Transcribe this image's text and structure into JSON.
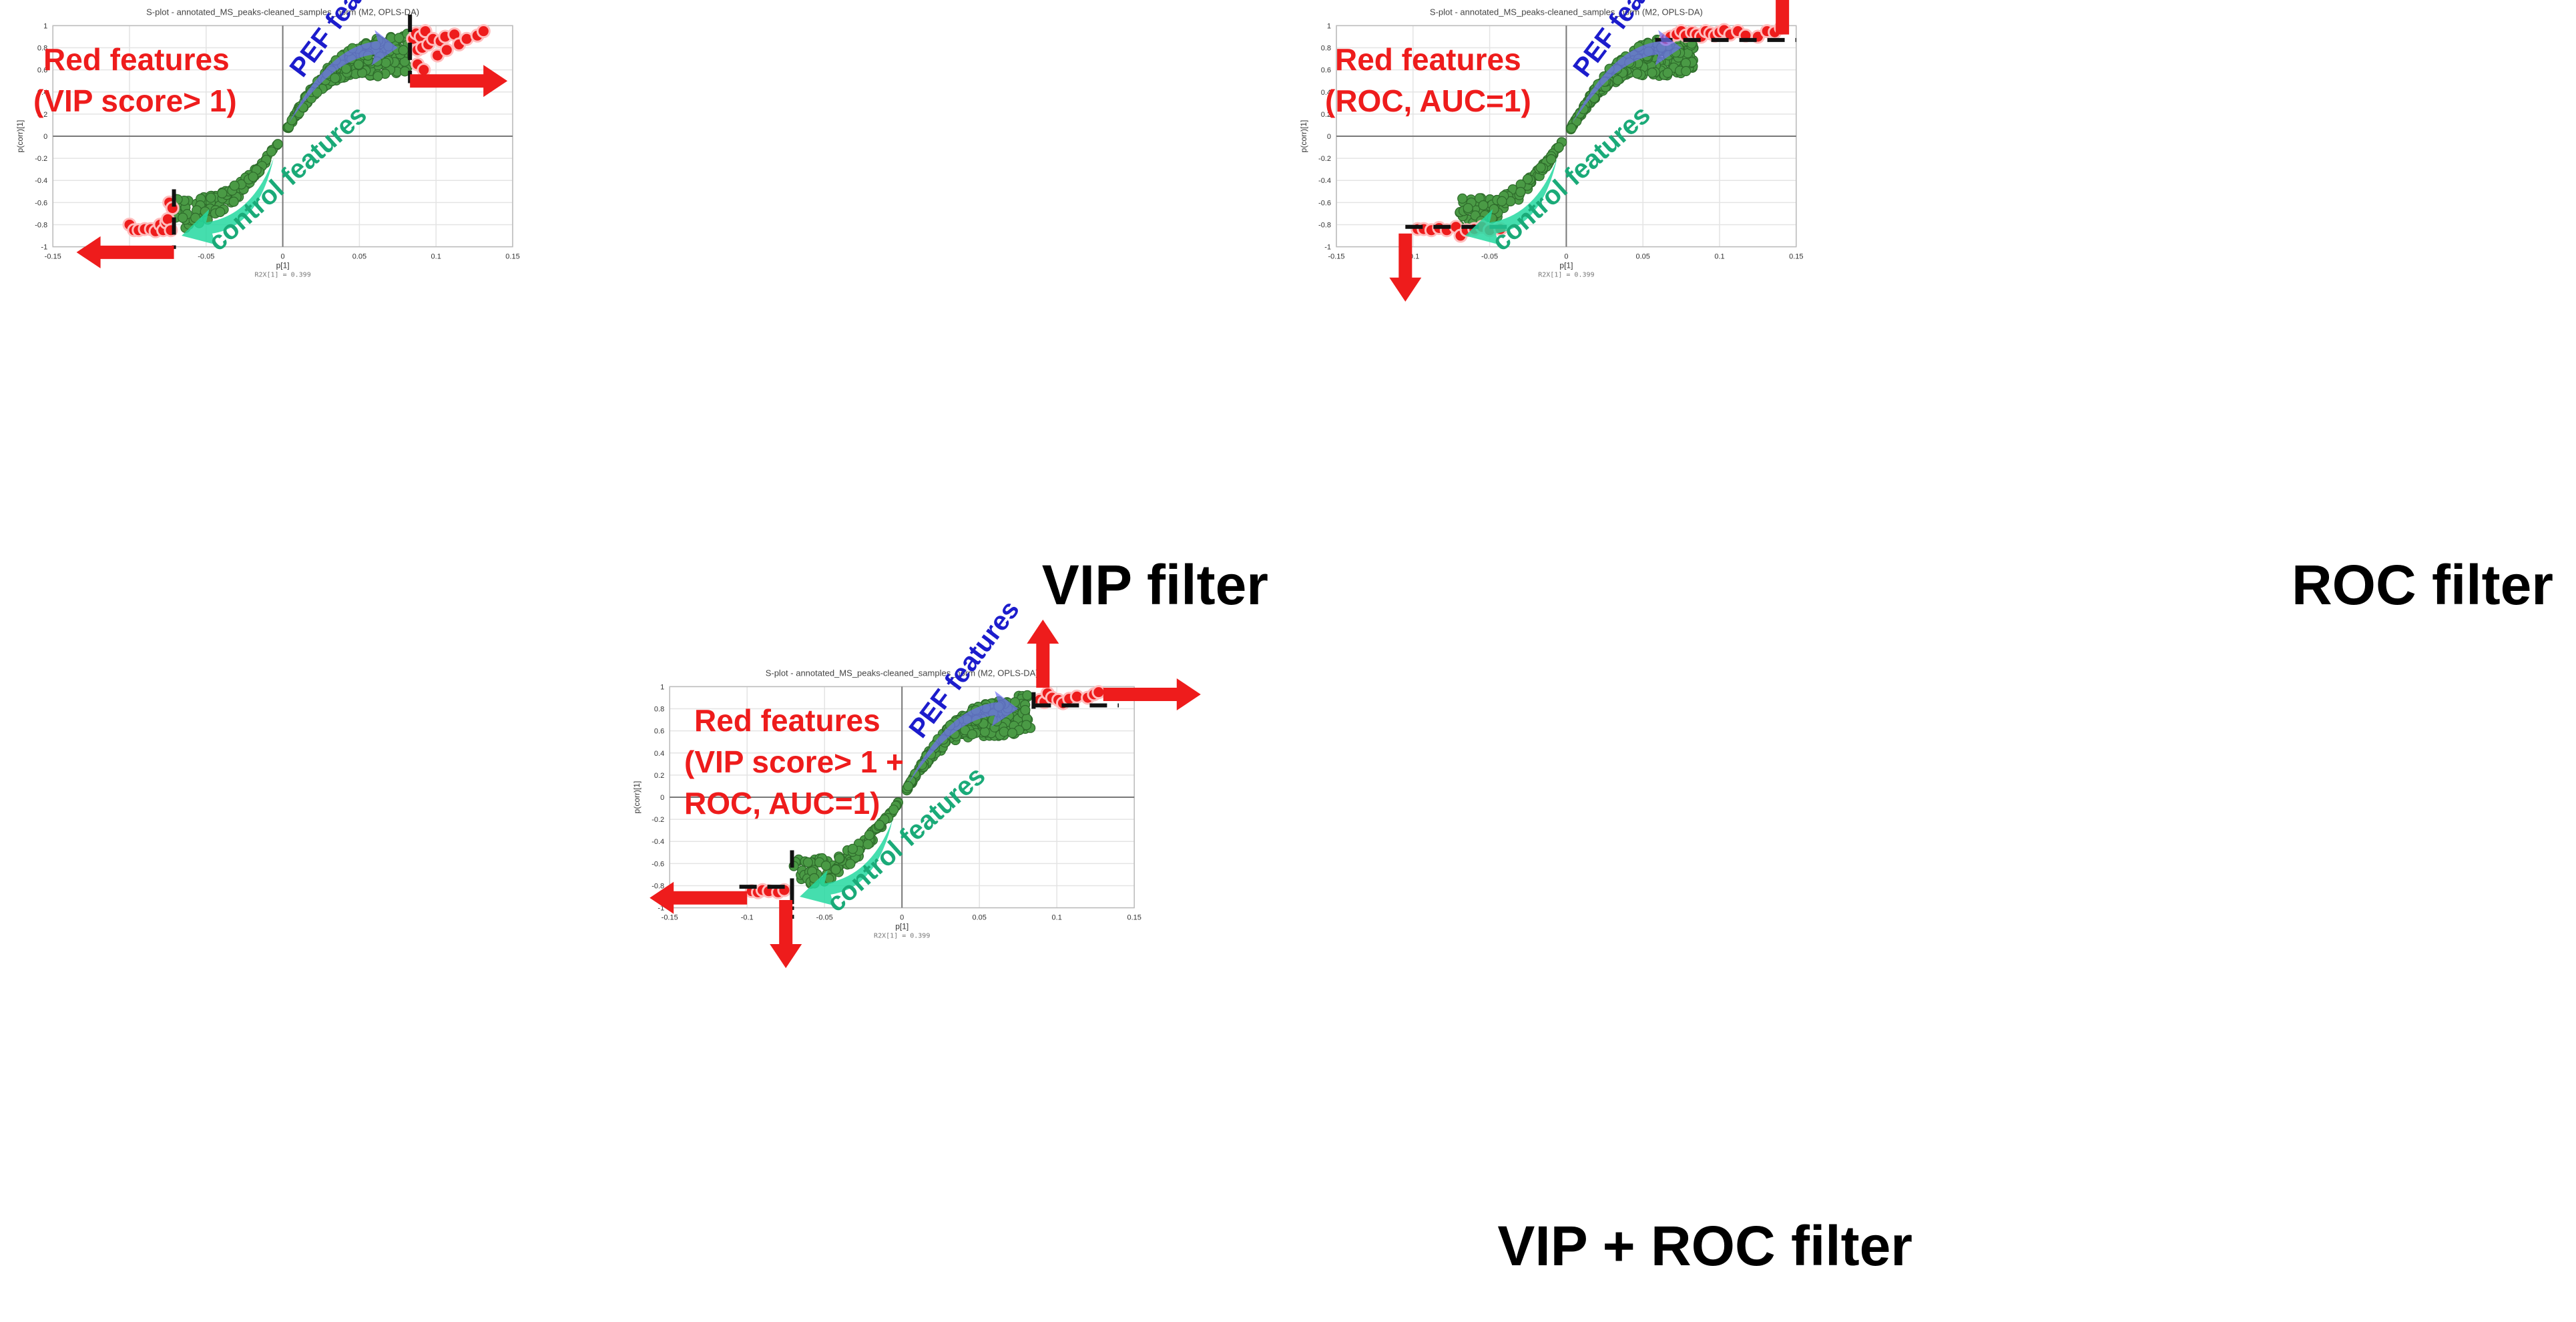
{
  "chart_data": [
    {
      "id": "vip",
      "type": "scatter",
      "title": "S-plot - annotated_MS_peaks-cleaned_samples_norm (M2, OPLS-DA)",
      "xlabel": "p[1]",
      "ylabel": "p(corr)[1]",
      "r2x": "R2X[1] = 0.399",
      "xlim": [
        -0.15,
        0.15
      ],
      "ylim": [
        -1,
        1
      ],
      "x_ticks": [
        "-0.15",
        "-0.1",
        "-0.05",
        "0",
        "0.05",
        "0.1",
        "0.15"
      ],
      "y_ticks": [
        "1",
        "0.8",
        "0.6",
        "0.4",
        "0.2",
        "0",
        "-0.2",
        "-0.4",
        "-0.6",
        "-0.8",
        "-1"
      ],
      "grid": true,
      "red_label_lines": [
        "Red features",
        "(VIP score> 1)"
      ],
      "filter_label": "VIP filter",
      "pef_label": "PEF features",
      "control_label": "control features",
      "threshold_x": [
        -0.071,
        0.083
      ],
      "red_points": [
        [
          -0.1,
          -0.8
        ],
        [
          -0.097,
          -0.85
        ],
        [
          -0.094,
          -0.85
        ],
        [
          -0.09,
          -0.84
        ],
        [
          -0.086,
          -0.84
        ],
        [
          -0.083,
          -0.86
        ],
        [
          -0.08,
          -0.8
        ],
        [
          -0.078,
          -0.85
        ],
        [
          -0.076,
          -0.78
        ],
        [
          -0.075,
          -0.75
        ],
        [
          -0.073,
          -0.85
        ],
        [
          -0.074,
          -0.6
        ],
        [
          -0.072,
          -0.65
        ],
        [
          0.085,
          0.88
        ],
        [
          0.087,
          0.93
        ],
        [
          0.088,
          0.78
        ],
        [
          0.088,
          0.65
        ],
        [
          0.09,
          0.9
        ],
        [
          0.091,
          0.8
        ],
        [
          0.092,
          0.6
        ],
        [
          0.093,
          0.95
        ],
        [
          0.095,
          0.83
        ],
        [
          0.098,
          0.88
        ],
        [
          0.101,
          0.73
        ],
        [
          0.103,
          0.86
        ],
        [
          0.106,
          0.9
        ],
        [
          0.107,
          0.78
        ],
        [
          0.112,
          0.92
        ],
        [
          0.115,
          0.83
        ],
        [
          0.12,
          0.88
        ],
        [
          0.127,
          0.91
        ],
        [
          0.131,
          0.95
        ]
      ],
      "arrows": [
        {
          "kind": "right",
          "at": [
            0.083,
            0.5
          ]
        },
        {
          "kind": "left",
          "at": [
            -0.071,
            -1.05
          ]
        }
      ]
    },
    {
      "id": "roc",
      "type": "scatter",
      "title": "S-plot - annotated_MS_peaks-cleaned_samples_norm (M2, OPLS-DA)",
      "xlabel": "p[1]",
      "ylabel": "p(corr)[1]",
      "r2x": "R2X[1] = 0.399",
      "xlim": [
        -0.15,
        0.15
      ],
      "ylim": [
        -1,
        1
      ],
      "x_ticks": [
        "-0.15",
        "-0.1",
        "-0.05",
        "0",
        "0.05",
        "0.1",
        "0.15"
      ],
      "y_ticks": [
        "1",
        "0.8",
        "0.6",
        "0.4",
        "0.2",
        "0",
        "-0.2",
        "-0.4",
        "-0.6",
        "-0.8",
        "-1"
      ],
      "grid": true,
      "red_label_lines": [
        "Red features",
        "(ROC, AUC=1)"
      ],
      "filter_label": "ROC filter",
      "pef_label": "PEF features",
      "control_label": "control features",
      "threshold_y": [
        -0.82,
        0.87
      ],
      "red_points": [
        [
          -0.097,
          -0.84
        ],
        [
          -0.093,
          -0.84
        ],
        [
          -0.088,
          -0.85
        ],
        [
          -0.083,
          -0.83
        ],
        [
          -0.078,
          -0.85
        ],
        [
          -0.072,
          -0.82
        ],
        [
          -0.069,
          -0.9
        ],
        [
          -0.065,
          -0.85
        ],
        [
          -0.06,
          -0.84
        ],
        [
          -0.055,
          -0.82
        ],
        [
          -0.05,
          -0.85
        ],
        [
          -0.043,
          -0.84
        ],
        [
          0.065,
          0.88
        ],
        [
          0.068,
          0.9
        ],
        [
          0.072,
          0.92
        ],
        [
          0.075,
          0.95
        ],
        [
          0.078,
          0.91
        ],
        [
          0.082,
          0.94
        ],
        [
          0.085,
          0.92
        ],
        [
          0.088,
          0.9
        ],
        [
          0.091,
          0.95
        ],
        [
          0.094,
          0.93
        ],
        [
          0.097,
          0.91
        ],
        [
          0.1,
          0.94
        ],
        [
          0.103,
          0.96
        ],
        [
          0.107,
          0.92
        ],
        [
          0.112,
          0.95
        ],
        [
          0.117,
          0.91
        ],
        [
          0.125,
          0.9
        ],
        [
          0.131,
          0.95
        ],
        [
          0.136,
          0.94
        ],
        [
          0.14,
          0.98
        ]
      ],
      "arrows": [
        {
          "kind": "down",
          "at": [
            -0.105,
            -0.88
          ]
        },
        {
          "kind": "up",
          "at": [
            0.141,
            0.92
          ]
        }
      ]
    },
    {
      "id": "both",
      "type": "scatter",
      "title": "S-plot - annotated_MS_peaks-cleaned_samples_norm (M2, OPLS-DA)",
      "xlabel": "p[1]",
      "ylabel": "p(corr)[1]",
      "r2x": "R2X[1] = 0.399",
      "xlim": [
        -0.15,
        0.15
      ],
      "ylim": [
        -1,
        1
      ],
      "x_ticks": [
        "-0.15",
        "-0.1",
        "-0.05",
        "0",
        "0.05",
        "0.1",
        "0.15"
      ],
      "y_ticks": [
        "1",
        "0.8",
        "0.6",
        "0.4",
        "0.2",
        "0",
        "-0.2",
        "-0.4",
        "-0.6",
        "-0.8",
        "-1"
      ],
      "grid": true,
      "red_label_lines": [
        "Red features",
        "(VIP score> 1 +",
        "ROC, AUC=1)"
      ],
      "filter_label": "VIP + ROC filter",
      "pef_label": "PEF features",
      "control_label": "control features",
      "threshold_x": [
        -0.071,
        0.085
      ],
      "threshold_y": [
        -0.81,
        0.83
      ],
      "red_points": [
        [
          -0.097,
          -0.85
        ],
        [
          -0.093,
          -0.86
        ],
        [
          -0.09,
          -0.84
        ],
        [
          -0.086,
          -0.85
        ],
        [
          -0.08,
          -0.86
        ],
        [
          -0.076,
          -0.84
        ],
        [
          0.089,
          0.88
        ],
        [
          0.092,
          0.86
        ],
        [
          0.094,
          0.94
        ],
        [
          0.097,
          0.9
        ],
        [
          0.101,
          0.88
        ],
        [
          0.104,
          0.85
        ],
        [
          0.108,
          0.89
        ],
        [
          0.113,
          0.91
        ],
        [
          0.12,
          0.9
        ],
        [
          0.124,
          0.93
        ],
        [
          0.127,
          0.95
        ]
      ],
      "arrows": [
        {
          "kind": "left",
          "at": [
            -0.1,
            -0.91
          ]
        },
        {
          "kind": "down",
          "at": [
            -0.075,
            -0.93
          ]
        },
        {
          "kind": "up",
          "at": [
            0.091,
            0.99
          ]
        },
        {
          "kind": "right",
          "at": [
            0.13,
            0.93
          ]
        }
      ]
    }
  ]
}
